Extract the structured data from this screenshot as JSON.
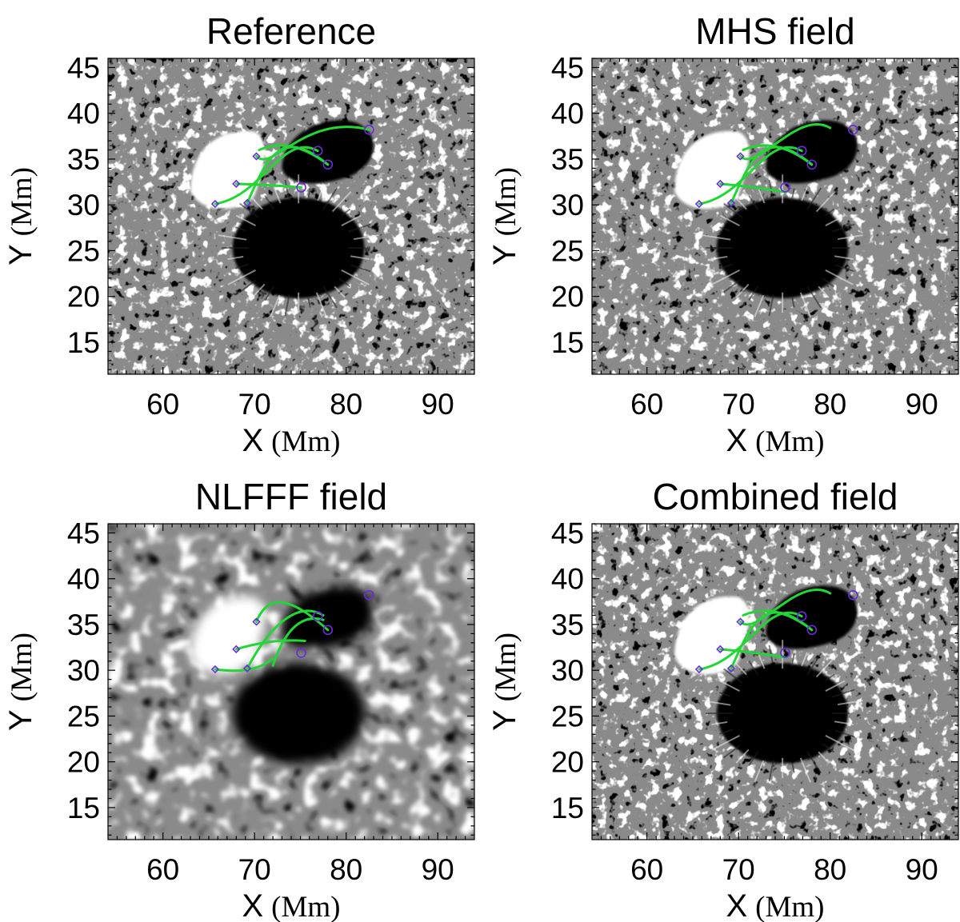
{
  "figure": {
    "panels": [
      {
        "id": "reference",
        "title": "Reference",
        "style": "sharp",
        "lines": "standard"
      },
      {
        "id": "mhs",
        "title": "MHS field",
        "style": "sharp",
        "lines": "mhs"
      },
      {
        "id": "nlfff",
        "title": "NLFFF field",
        "style": "blur",
        "lines": "nlfff"
      },
      {
        "id": "combined",
        "title": "Combined field",
        "style": "sharp",
        "lines": "mhs"
      }
    ],
    "axes": {
      "xlabel_main": "X",
      "ylabel_main": "Y",
      "unit": "(Mm)",
      "xlim": [
        54,
        94
      ],
      "ylim": [
        11.5,
        46
      ],
      "xticks": [
        "60",
        "70",
        "80",
        "90"
      ],
      "yticks": [
        "15",
        "20",
        "25",
        "30",
        "35",
        "40",
        "45"
      ]
    },
    "colors": {
      "field_line": "#22d635",
      "footpoint_marker": "#6a2bd8",
      "positive_polarity": "#ffffff",
      "negative_polarity": "#000000",
      "background_field": "#8a8a8a"
    }
  },
  "chart_data": {
    "type": "image-grid",
    "description_units": "Mm",
    "footpoints_diamond": [
      [
        65.7,
        30.1
      ],
      [
        68.0,
        32.3
      ],
      [
        69.2,
        30.2
      ],
      [
        70.2,
        35.3
      ]
    ],
    "footpoints_circle": [
      [
        75.1,
        31.9
      ],
      [
        76.9,
        35.9
      ],
      [
        78.0,
        34.4
      ],
      [
        82.5,
        38.2
      ]
    ],
    "field_lines": {
      "standard": [
        [
          [
            68.0,
            32.3
          ],
          [
            71.5,
            32.2
          ],
          [
            75.1,
            31.9
          ]
        ],
        [
          [
            65.7,
            30.1
          ],
          [
            71.0,
            31.0
          ],
          [
            73.0,
            38.0
          ],
          [
            76.9,
            35.9
          ]
        ],
        [
          [
            69.2,
            30.2
          ],
          [
            71.5,
            35.5
          ],
          [
            73.0,
            38.5
          ],
          [
            78.0,
            34.4
          ]
        ],
        [
          [
            70.2,
            35.3
          ],
          [
            72.0,
            33.5
          ],
          [
            75.5,
            40.0
          ],
          [
            82.5,
            38.2
          ]
        ],
        [
          [
            70.5,
            36.0
          ],
          [
            74.0,
            37.5
          ],
          [
            78.0,
            34.4
          ]
        ]
      ],
      "mhs": [
        [
          [
            68.0,
            32.3
          ],
          [
            71.5,
            32.0
          ],
          [
            75.1,
            31.4
          ]
        ],
        [
          [
            65.7,
            30.1
          ],
          [
            71.0,
            31.0
          ],
          [
            73.0,
            38.0
          ],
          [
            76.9,
            35.9
          ]
        ],
        [
          [
            69.2,
            30.2
          ],
          [
            71.5,
            35.5
          ],
          [
            73.0,
            38.5
          ],
          [
            78.0,
            34.4
          ]
        ],
        [
          [
            70.2,
            35.3
          ],
          [
            72.0,
            33.5
          ],
          [
            76.5,
            40.5
          ],
          [
            80.0,
            38.4
          ]
        ],
        [
          [
            70.5,
            36.0
          ],
          [
            74.0,
            37.5
          ],
          [
            78.0,
            34.4
          ]
        ]
      ],
      "nlfff": [
        [
          [
            68.0,
            32.3
          ],
          [
            72.0,
            33.5
          ],
          [
            75.5,
            33.2
          ]
        ],
        [
          [
            65.7,
            30.1
          ],
          [
            70.0,
            29.5
          ],
          [
            72.0,
            31.3
          ]
        ],
        [
          [
            69.2,
            30.2
          ],
          [
            72.0,
            35.5
          ],
          [
            75.0,
            37.5
          ],
          [
            77.5,
            36.0
          ]
        ],
        [
          [
            70.2,
            35.3
          ],
          [
            71.5,
            38.5
          ],
          [
            74.0,
            38.0
          ],
          [
            78.0,
            34.4
          ]
        ],
        [
          [
            72.0,
            30.5
          ],
          [
            74.0,
            36.5
          ],
          [
            77.5,
            35.5
          ]
        ]
      ]
    }
  }
}
